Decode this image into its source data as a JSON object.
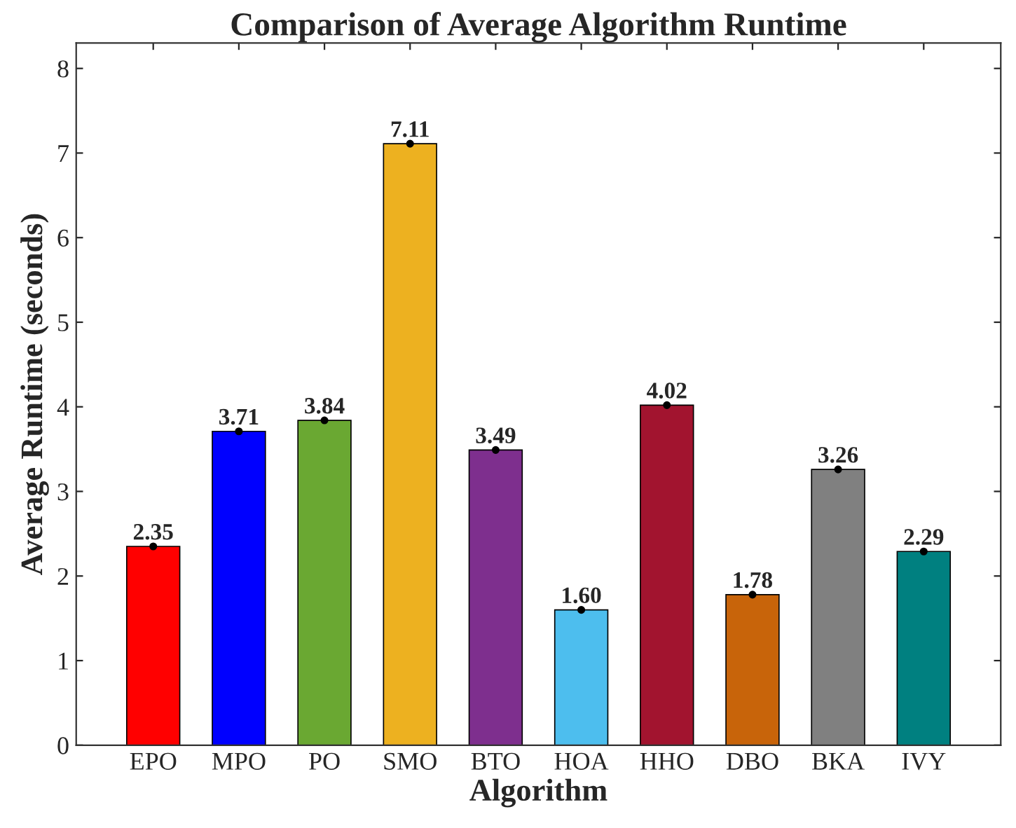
{
  "chart_data": {
    "type": "bar",
    "title": "Comparison of Average Algorithm Runtime",
    "xlabel": "Algorithm",
    "ylabel": "Average Runtime (seconds)",
    "categories": [
      "EPO",
      "MPO",
      "PO",
      "SMO",
      "BTO",
      "HOA",
      "HHO",
      "DBO",
      "BKA",
      "IVY"
    ],
    "values": [
      2.35,
      3.71,
      3.84,
      7.11,
      3.49,
      1.6,
      4.02,
      1.78,
      3.26,
      2.29
    ],
    "value_labels": [
      "2.35",
      "3.71",
      "3.84",
      "7.11",
      "3.49",
      "1.60",
      "4.02",
      "1.78",
      "3.26",
      "2.29"
    ],
    "colors": [
      "#ff0000",
      "#0000ff",
      "#6aa832",
      "#edb120",
      "#7e2f8e",
      "#4dbeee",
      "#a2142f",
      "#c8640a",
      "#808080",
      "#008080"
    ],
    "series": [
      {
        "type": "scatter",
        "color": "#000000",
        "marker": "circle",
        "x": [
          "EPO",
          "MPO",
          "PO",
          "SMO",
          "BTO",
          "HOA",
          "HHO",
          "DBO",
          "BKA",
          "IVY"
        ],
        "values": [
          2.35,
          3.71,
          3.84,
          7.11,
          3.49,
          1.6,
          4.02,
          1.78,
          3.26,
          2.29
        ]
      }
    ],
    "ylim": [
      0,
      8.3
    ],
    "yticks": [
      0,
      1,
      2,
      3,
      4,
      5,
      6,
      7,
      8
    ],
    "grid": false,
    "legend": false
  }
}
